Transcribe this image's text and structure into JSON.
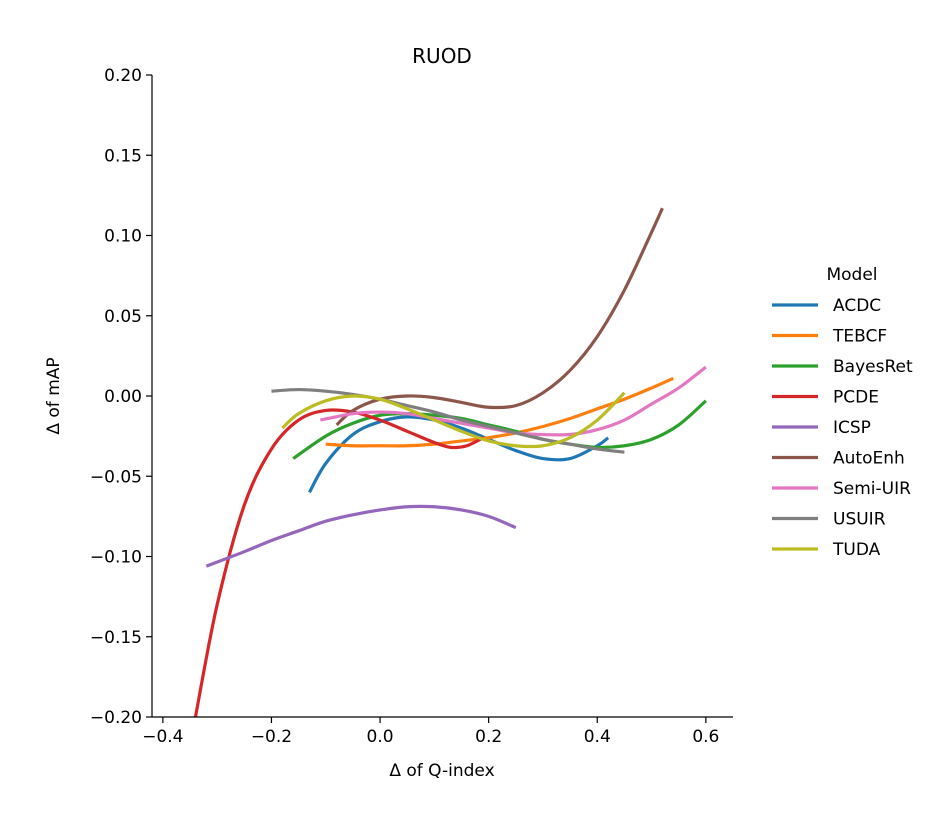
{
  "chart_data": {
    "type": "line",
    "title": "RUOD",
    "xlabel": "Δ of Q-index",
    "ylabel": "Δ of mAP",
    "xlim": [
      -0.42,
      0.65
    ],
    "ylim": [
      -0.2,
      0.2
    ],
    "x_ticks": [
      -0.4,
      -0.2,
      0.0,
      0.2,
      0.4,
      0.6
    ],
    "x_tick_labels": [
      "−0.4",
      "−0.2",
      "0.0",
      "0.2",
      "0.4",
      "0.6"
    ],
    "y_ticks": [
      -0.2,
      -0.15,
      -0.1,
      -0.05,
      0.0,
      0.05,
      0.1,
      0.15,
      0.2
    ],
    "y_tick_labels": [
      "−0.20",
      "−0.15",
      "−0.10",
      "−0.05",
      "0.00",
      "0.05",
      "0.10",
      "0.15",
      "0.20"
    ],
    "grid": false,
    "legend": {
      "title": "Model",
      "placement": "right"
    },
    "series": [
      {
        "name": "ACDC",
        "color": "#1f77b4",
        "x": [
          -0.13,
          -0.1,
          -0.05,
          0.0,
          0.05,
          0.1,
          0.15,
          0.2,
          0.25,
          0.3,
          0.35,
          0.4,
          0.42
        ],
        "y": [
          -0.06,
          -0.042,
          -0.024,
          -0.016,
          -0.013,
          -0.015,
          -0.02,
          -0.027,
          -0.034,
          -0.039,
          -0.039,
          -0.031,
          -0.026
        ]
      },
      {
        "name": "TEBCF",
        "color": "#ff7f0e",
        "x": [
          -0.1,
          -0.05,
          0.0,
          0.05,
          0.1,
          0.15,
          0.2,
          0.25,
          0.3,
          0.35,
          0.4,
          0.45,
          0.5,
          0.54
        ],
        "y": [
          -0.03,
          -0.031,
          -0.031,
          -0.031,
          -0.03,
          -0.028,
          -0.026,
          -0.023,
          -0.019,
          -0.014,
          -0.008,
          -0.002,
          0.005,
          0.011
        ]
      },
      {
        "name": "BayesRet",
        "color": "#2ca02c",
        "x": [
          -0.16,
          -0.1,
          -0.05,
          0.0,
          0.05,
          0.1,
          0.15,
          0.2,
          0.25,
          0.3,
          0.35,
          0.4,
          0.45,
          0.5,
          0.55,
          0.6
        ],
        "y": [
          -0.039,
          -0.025,
          -0.017,
          -0.012,
          -0.011,
          -0.012,
          -0.014,
          -0.018,
          -0.022,
          -0.027,
          -0.03,
          -0.032,
          -0.031,
          -0.027,
          -0.018,
          -0.003
        ]
      },
      {
        "name": "PCDE",
        "color": "#d62728",
        "x": [
          -0.34,
          -0.3,
          -0.25,
          -0.2,
          -0.15,
          -0.1,
          -0.05,
          0.0,
          0.05,
          0.1,
          0.13,
          0.16,
          0.19
        ],
        "y": [
          -0.2,
          -0.13,
          -0.068,
          -0.033,
          -0.015,
          -0.009,
          -0.01,
          -0.015,
          -0.022,
          -0.029,
          -0.032,
          -0.031,
          -0.026
        ]
      },
      {
        "name": "ICSP",
        "color": "#9467bd",
        "x": [
          -0.32,
          -0.25,
          -0.2,
          -0.15,
          -0.1,
          -0.05,
          0.0,
          0.05,
          0.1,
          0.15,
          0.2,
          0.25
        ],
        "y": [
          -0.106,
          -0.097,
          -0.09,
          -0.084,
          -0.078,
          -0.074,
          -0.071,
          -0.069,
          -0.069,
          -0.071,
          -0.075,
          -0.082
        ]
      },
      {
        "name": "AutoEnh",
        "color": "#8c564b",
        "x": [
          -0.08,
          -0.05,
          0.0,
          0.05,
          0.1,
          0.15,
          0.2,
          0.25,
          0.3,
          0.35,
          0.4,
          0.45,
          0.5,
          0.52
        ],
        "y": [
          -0.018,
          -0.009,
          -0.002,
          0.0,
          -0.001,
          -0.004,
          -0.007,
          -0.006,
          0.002,
          0.016,
          0.037,
          0.066,
          0.102,
          0.117
        ]
      },
      {
        "name": "Semi-UIR",
        "color": "#e377c2",
        "x": [
          -0.11,
          -0.05,
          0.0,
          0.05,
          0.1,
          0.15,
          0.2,
          0.25,
          0.3,
          0.35,
          0.4,
          0.45,
          0.5,
          0.55,
          0.6
        ],
        "y": [
          -0.015,
          -0.011,
          -0.01,
          -0.011,
          -0.014,
          -0.017,
          -0.02,
          -0.023,
          -0.024,
          -0.024,
          -0.021,
          -0.015,
          -0.005,
          0.005,
          0.018
        ]
      },
      {
        "name": "USUIR",
        "color": "#7f7f7f",
        "x": [
          -0.2,
          -0.15,
          -0.1,
          -0.05,
          0.0,
          0.05,
          0.1,
          0.15,
          0.2,
          0.25,
          0.3,
          0.35,
          0.4,
          0.45
        ],
        "y": [
          0.003,
          0.004,
          0.003,
          0.001,
          -0.002,
          -0.006,
          -0.01,
          -0.015,
          -0.019,
          -0.023,
          -0.027,
          -0.03,
          -0.033,
          -0.035
        ]
      },
      {
        "name": "TUDA",
        "color": "#bcbd22",
        "x": [
          -0.18,
          -0.15,
          -0.1,
          -0.05,
          0.0,
          0.05,
          0.1,
          0.15,
          0.2,
          0.25,
          0.3,
          0.35,
          0.4,
          0.45
        ],
        "y": [
          -0.02,
          -0.011,
          -0.003,
          0.0,
          -0.002,
          -0.008,
          -0.015,
          -0.022,
          -0.028,
          -0.031,
          -0.031,
          -0.026,
          -0.015,
          0.002
        ]
      }
    ]
  }
}
